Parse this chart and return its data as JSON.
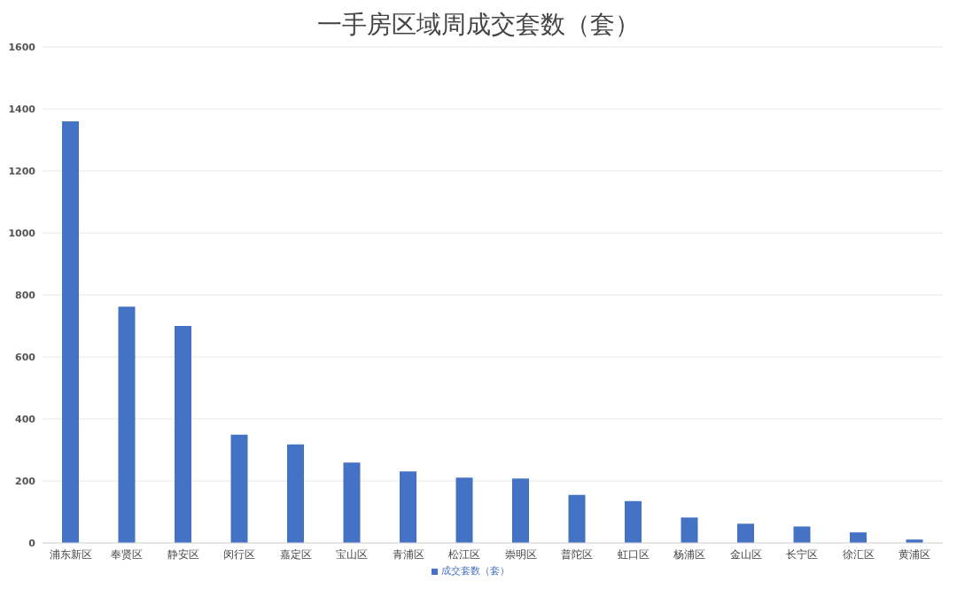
{
  "chart_data": {
    "type": "bar",
    "title": "一手房区域周成交套数（套）",
    "categories": [
      "浦东新区",
      "奉贤区",
      "静安区",
      "闵行区",
      "嘉定区",
      "宝山区",
      "青浦区",
      "松江区",
      "崇明区",
      "普陀区",
      "虹口区",
      "杨浦区",
      "金山区",
      "长宁区",
      "徐汇区",
      "黄浦区"
    ],
    "series": [
      {
        "name": "成交套数（套）",
        "color": "#4472c4",
        "values": [
          1360,
          762,
          700,
          349,
          318,
          259,
          231,
          211,
          208,
          155,
          135,
          82,
          62,
          53,
          34,
          11
        ]
      }
    ],
    "ylim": [
      0,
      1600
    ],
    "yticks": [
      0,
      200,
      400,
      600,
      800,
      1000,
      1200,
      1400,
      1600
    ],
    "grid": "y",
    "legend": "bottom"
  }
}
